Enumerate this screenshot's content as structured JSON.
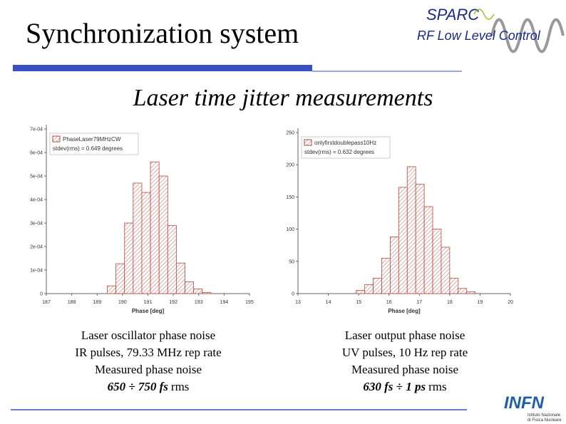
{
  "slide": {
    "title": "Synchronization system",
    "subtitle": "Laser time jitter measurements",
    "logo_top": "SPARC",
    "logo_sub": "RF Low Level Control",
    "logo_bottom": "INFN",
    "logo_bottom_sub": [
      "Istituto Nazionale",
      "di Fisica Nucleare"
    ],
    "captions": [
      {
        "lines": [
          "Laser oscillator phase noise",
          "IR pulses, 79.33 MHz rep rate",
          "Measured phase noise"
        ],
        "result": "650 ÷ 750 fs",
        "unit": "rms"
      },
      {
        "lines": [
          "Laser output phase noise",
          "UV pulses, 10 Hz rep rate",
          "Measured phase noise"
        ],
        "result": "630 fs ÷ 1 ps",
        "unit": "rms"
      }
    ]
  },
  "chart_data": [
    {
      "type": "histogram",
      "x_label": "Phase [deg]",
      "legend": [
        "PhaseLaser79MHzCW",
        "stdev(rms) = 0.649 degrees"
      ],
      "color": "#b24a3e",
      "bins": [
        189.4,
        189.74,
        190.08,
        190.42,
        190.76,
        191.1,
        191.44,
        191.78,
        192.12,
        192.46,
        192.8,
        193.14,
        193.48
      ],
      "values": [
        3.3e-05,
        0.000127,
        0.0003,
        0.00047,
        0.00043,
        0.00056,
        0.0005,
        0.00029,
        0.00013,
        5e-05,
        2e-05,
        5e-06
      ],
      "xlim": [
        187,
        195
      ],
      "xticks": [
        187,
        188,
        189,
        190,
        191,
        192,
        193,
        194,
        195
      ],
      "ylim": [
        0,
        0.0007
      ],
      "yticks": [
        0,
        {
          "value": 0.0001,
          "label": "1e-04"
        },
        {
          "value": 0.0002,
          "label": "2e-04"
        },
        {
          "value": 0.0003,
          "label": "3e-04"
        },
        {
          "value": 0.0004,
          "label": "4e-04"
        },
        {
          "value": 0.0005,
          "label": "5e-04"
        },
        {
          "value": 0.0006,
          "label": "6e-04"
        },
        {
          "value": 0.0007,
          "label": "7e-04"
        }
      ]
    },
    {
      "type": "histogram",
      "x_label": "Phase [deg]",
      "legend": [
        "onlyfirstdoublepass10Hz",
        "stdev(rms) = 0.632 degrees"
      ],
      "color": "#b24a3e",
      "bins": [
        14.92,
        15.2,
        15.48,
        15.76,
        16.04,
        16.32,
        16.6,
        16.88,
        17.16,
        17.44,
        17.72,
        18.0,
        18.28,
        18.56,
        18.84
      ],
      "values": [
        5,
        14,
        24,
        55,
        88,
        165,
        197,
        170,
        135,
        100,
        72,
        24,
        8,
        3
      ],
      "xlim": [
        13,
        20
      ],
      "xticks": [
        13,
        14,
        15,
        16,
        17,
        18,
        19,
        20
      ],
      "ylim": [
        0,
        250
      ],
      "yticks": [
        0,
        50,
        100,
        150,
        200,
        250
      ]
    }
  ]
}
